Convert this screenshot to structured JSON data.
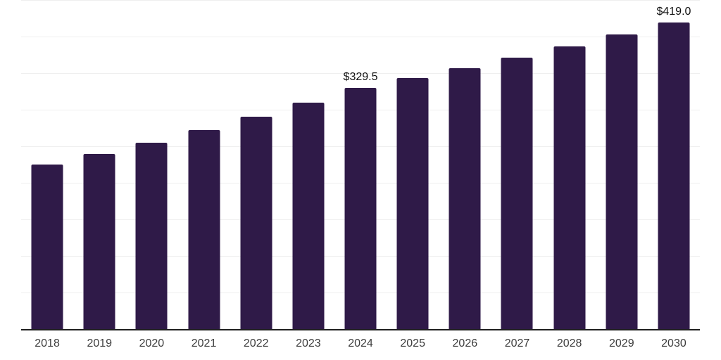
{
  "chart": {
    "background_color": "#ffffff",
    "bar_color": "#2f1a48",
    "grid_color": "#efefef",
    "axis_color": "#1f1f1f",
    "tick_label_color": "#3d3d3d",
    "value_label_color": "#111111"
  },
  "chart_data": {
    "type": "bar",
    "title": "",
    "xlabel": "",
    "ylabel": "",
    "categories": [
      "2018",
      "2019",
      "2020",
      "2021",
      "2022",
      "2023",
      "2024",
      "2025",
      "2026",
      "2027",
      "2028",
      "2029",
      "2030"
    ],
    "values": [
      224.6,
      239.4,
      255.2,
      272.0,
      290.0,
      309.2,
      329.5,
      343.0,
      357.1,
      371.6,
      386.8,
      402.6,
      419.0
    ],
    "data_labels": [
      null,
      null,
      null,
      null,
      null,
      null,
      "$329.5",
      null,
      null,
      null,
      null,
      null,
      "$419.0"
    ],
    "ylim": [
      0,
      450
    ],
    "grid_step": 50,
    "grid": "horizontal",
    "legend_position": "none"
  }
}
